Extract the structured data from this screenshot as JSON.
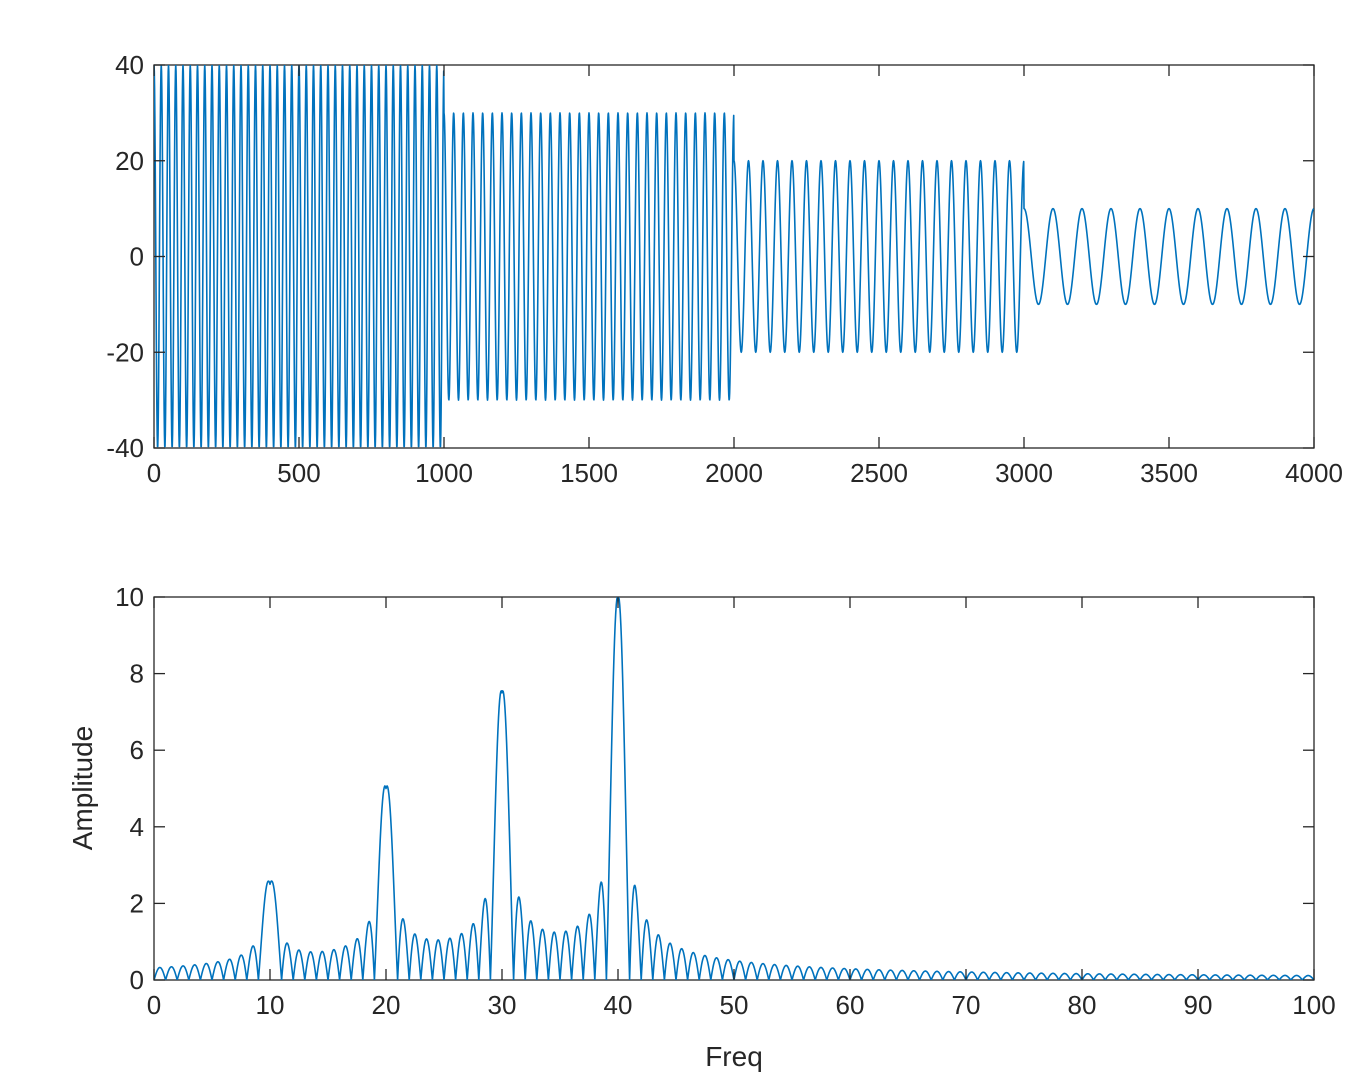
{
  "colors": {
    "series": "#0072BD",
    "axes": "#262626",
    "background": "#ffffff"
  },
  "chart_data": [
    {
      "type": "line",
      "title": "",
      "xlabel": "",
      "ylabel": "",
      "xlim": [
        0,
        4000
      ],
      "ylim": [
        -40,
        40
      ],
      "xticks": [
        0,
        500,
        1000,
        1500,
        2000,
        2500,
        3000,
        3500,
        4000
      ],
      "yticks": [
        -40,
        -20,
        0,
        20,
        40
      ],
      "xtick_labels": [
        "0",
        "500",
        "1000",
        "1500",
        "2000",
        "2500",
        "3000",
        "3500",
        "4000"
      ],
      "ytick_labels": [
        "-40",
        "-20",
        "0",
        "20",
        "40"
      ],
      "grid": false,
      "series": [
        {
          "segments": [
            {
              "x_start": 0,
              "x_end": 1000,
              "frequency_hz": 40,
              "amplitude": 40,
              "sample_rate_hz": 1000
            },
            {
              "x_start": 1000,
              "x_end": 2000,
              "frequency_hz": 30,
              "amplitude": 30,
              "sample_rate_hz": 1000
            },
            {
              "x_start": 2000,
              "x_end": 3000,
              "frequency_hz": 20,
              "amplitude": 20,
              "sample_rate_hz": 1000
            },
            {
              "x_start": 3000,
              "x_end": 4000,
              "frequency_hz": 10,
              "amplitude": 10,
              "sample_rate_hz": 1000
            }
          ]
        }
      ]
    },
    {
      "type": "line",
      "title": "",
      "xlabel": "Freq",
      "ylabel": "Amplitude",
      "xlim": [
        0,
        100
      ],
      "ylim": [
        0,
        10
      ],
      "xticks": [
        0,
        10,
        20,
        30,
        40,
        50,
        60,
        70,
        80,
        90,
        100
      ],
      "yticks": [
        0,
        2,
        4,
        6,
        8,
        10
      ],
      "xtick_labels": [
        "0",
        "10",
        "20",
        "30",
        "40",
        "50",
        "60",
        "70",
        "80",
        "90",
        "100"
      ],
      "ytick_labels": [
        "0",
        "2",
        "4",
        "6",
        "8",
        "10"
      ],
      "grid": false,
      "series": [
        {
          "peaks": [
            {
              "freq": 10,
              "amplitude": 2.5
            },
            {
              "freq": 20,
              "amplitude": 5.0
            },
            {
              "freq": 30,
              "amplitude": 7.5
            },
            {
              "freq": 40,
              "amplitude": 10.0
            }
          ],
          "peak_width_hz": 1.0
        }
      ]
    }
  ]
}
